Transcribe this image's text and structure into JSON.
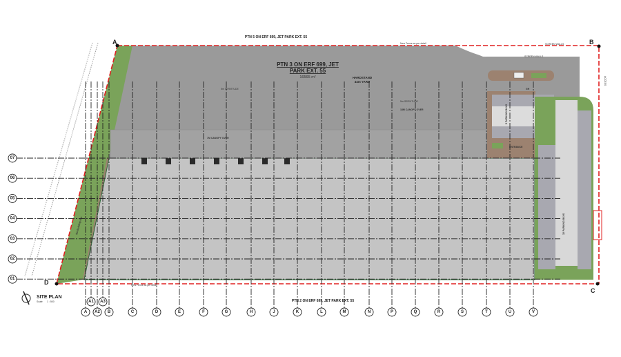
{
  "title": {
    "label": "SITE PLAN",
    "scale_label": "Scale",
    "scale_value": "1 : 500"
  },
  "boundaries": {
    "north": "PTN 5 ON ERF 699, JET PARK EXT. 55",
    "south": "PTN 2 ON ERF 699, JET PARK EXT. 55"
  },
  "site": {
    "name_line1": "PTN 3 ON ERF 699, JET",
    "name_line2": "PARK EXT. 55",
    "area": "16565 m²",
    "hardstand_line1": "HARDSTAND",
    "hardstand_line2": "44m YARD"
  },
  "notes": {
    "servitude_left": "5m SERVITUDE",
    "servitude_right": "5m SERVITUDE",
    "canopy_18": "18M CANOPY OVER",
    "canopy_7": "7M CANOPY OVER",
    "parking_5": "5 PARKING BAYS",
    "parking_32": "32 PARKING BAYS",
    "entrance": "ENTRANCE",
    "gh": "GH",
    "screen_walls": "SCREEN WALLS",
    "access": "ACCESS",
    "new_fence": "New Fence as per detail",
    "building_line": "5m Building line"
  },
  "corners": [
    "A",
    "B",
    "C",
    "D"
  ],
  "grid_columns": [
    "A",
    "A1",
    "A2",
    "A3",
    "B",
    "C",
    "D",
    "E",
    "F",
    "G",
    "H",
    "J",
    "K",
    "L",
    "M",
    "N",
    "P",
    "Q",
    "R",
    "S",
    "T",
    "U",
    "V"
  ],
  "grid_rows": [
    "07",
    "06",
    "05",
    "04",
    "03",
    "02",
    "01"
  ],
  "colors": {
    "hardstand": "#9a9a9a",
    "building": "#c4c4c4",
    "landscape": "#7aa35a",
    "paving": "#9c8270",
    "boundary": "#e02020",
    "parking": "#d4d4d4"
  }
}
